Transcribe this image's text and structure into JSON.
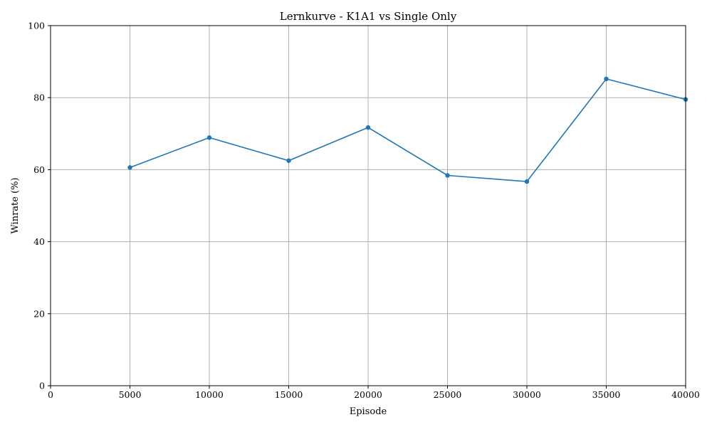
{
  "chart_data": {
    "type": "line",
    "title": "Lernkurve - K1A1 vs Single Only",
    "xlabel": "Episode",
    "ylabel": "Winrate (%)",
    "xlim": [
      0,
      40000
    ],
    "ylim": [
      0,
      100
    ],
    "xticks": [
      0,
      5000,
      10000,
      15000,
      20000,
      25000,
      30000,
      35000,
      40000
    ],
    "yticks": [
      0,
      20,
      40,
      60,
      80,
      100
    ],
    "grid": true,
    "series": [
      {
        "color": "#1f77b4",
        "marker": "circle",
        "x": [
          5000,
          10000,
          15000,
          20000,
          25000,
          30000,
          35000,
          40000
        ],
        "y": [
          60.6,
          68.9,
          62.5,
          71.7,
          58.4,
          56.7,
          85.2,
          79.5
        ]
      }
    ]
  }
}
